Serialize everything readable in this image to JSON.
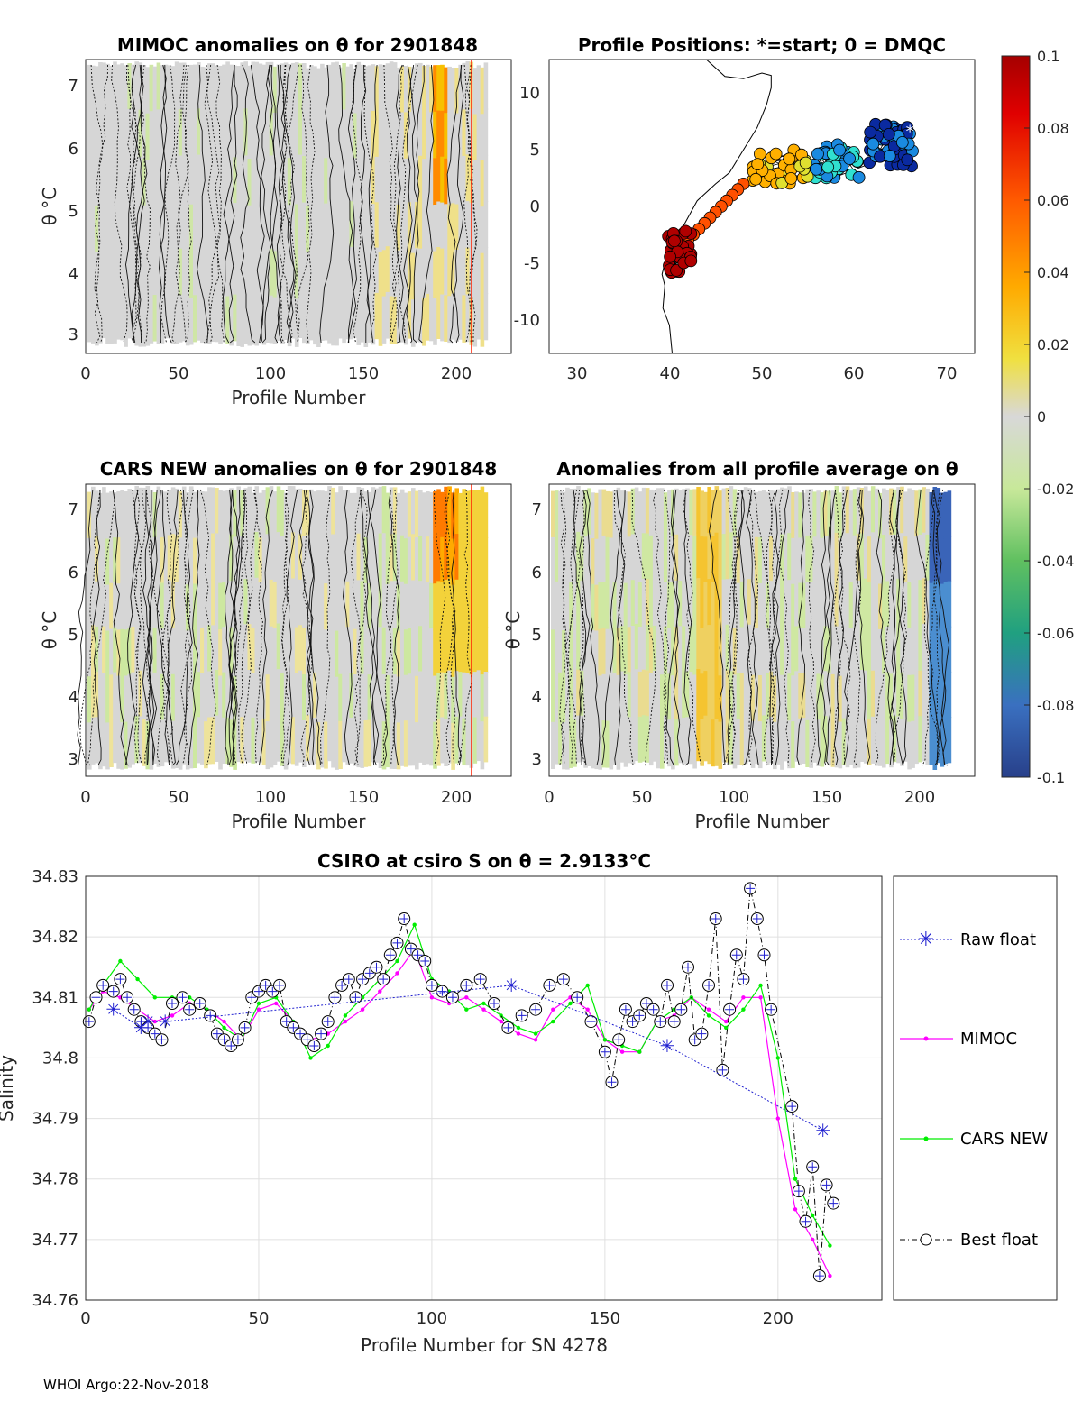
{
  "chart_data": [
    {
      "type": "heatmap",
      "title": "MIMOC anomalies on θ  for 2901848",
      "xlabel": "Profile Number",
      "ylabel": "θ °C",
      "xticks": [
        "0",
        "50",
        "100",
        "150",
        "200"
      ],
      "yticks": [
        "3",
        "4",
        "5",
        "6",
        "7"
      ],
      "xlim": [
        0,
        230
      ],
      "ylim": [
        2.75,
        7.4
      ]
    },
    {
      "type": "scatter",
      "title": "Profile Positions: *=start; 0 = DMQC",
      "xticks": [
        "30",
        "40",
        "50",
        "60",
        "70"
      ],
      "yticks": [
        "10",
        "5",
        "0",
        "-5",
        "-10"
      ],
      "xlim": [
        27,
        73
      ],
      "ylim": [
        -13,
        13
      ]
    },
    {
      "type": "heatmap",
      "title": "CARS NEW anomalies on θ for 2901848",
      "xlabel": "Profile Number",
      "ylabel": "θ °C",
      "xticks": [
        "0",
        "50",
        "100",
        "150",
        "200"
      ],
      "yticks": [
        "3",
        "4",
        "5",
        "6",
        "7"
      ],
      "xlim": [
        0,
        230
      ],
      "ylim": [
        2.75,
        7.4
      ]
    },
    {
      "type": "heatmap",
      "title": "Anomalies from all profile average on θ",
      "xlabel": "Profile Number",
      "ylabel": "θ °C",
      "xticks": [
        "0",
        "50",
        "100",
        "150",
        "200"
      ],
      "yticks": [
        "3",
        "4",
        "5",
        "6",
        "7"
      ],
      "xlim": [
        0,
        230
      ],
      "ylim": [
        2.75,
        7.4
      ]
    },
    {
      "type": "line",
      "title": "CSIRO at csiro S on θ = 2.9133°C",
      "xlabel": "Profile Number for SN 4278",
      "ylabel": "Salinity",
      "xlim": [
        0,
        230
      ],
      "ylim": [
        34.76,
        34.83
      ],
      "xticks": [
        "0",
        "50",
        "100",
        "150",
        "200"
      ],
      "yticks": [
        "34.76",
        "34.77",
        "34.78",
        "34.79",
        "34.8",
        "34.81",
        "34.82",
        "34.83"
      ],
      "legend": [
        "Raw float",
        "MIMOC",
        "CARS NEW",
        "Best float"
      ],
      "legend_position": "outside-right",
      "series": [
        {
          "name": "Best float",
          "x": [
            1,
            3,
            5,
            8,
            10,
            12,
            14,
            16,
            18,
            20,
            22,
            25,
            28,
            30,
            33,
            36,
            38,
            40,
            42,
            44,
            46,
            48,
            50,
            52,
            54,
            56,
            58,
            60,
            62,
            64,
            66,
            68,
            70,
            72,
            74,
            76,
            78,
            80,
            82,
            84,
            86,
            88,
            90,
            92,
            94,
            96,
            98,
            100,
            103,
            106,
            110,
            114,
            118,
            122,
            126,
            130,
            134,
            138,
            142,
            146,
            150,
            152,
            154,
            156,
            158,
            160,
            162,
            164,
            166,
            168,
            170,
            172,
            174,
            176,
            178,
            180,
            182,
            184,
            186,
            188,
            190,
            192,
            194,
            196,
            198,
            204,
            206,
            208,
            210,
            212,
            214,
            216
          ],
          "values": [
            34.806,
            34.81,
            34.812,
            34.811,
            34.813,
            34.81,
            34.808,
            34.806,
            34.805,
            34.804,
            34.803,
            34.809,
            34.81,
            34.808,
            34.809,
            34.807,
            34.804,
            34.803,
            34.802,
            34.803,
            34.805,
            34.81,
            34.811,
            34.812,
            34.811,
            34.812,
            34.806,
            34.805,
            34.804,
            34.803,
            34.802,
            34.804,
            34.806,
            34.81,
            34.812,
            34.813,
            34.81,
            34.813,
            34.814,
            34.815,
            34.813,
            34.817,
            34.819,
            34.823,
            34.818,
            34.817,
            34.816,
            34.812,
            34.811,
            34.81,
            34.812,
            34.813,
            34.809,
            34.805,
            34.807,
            34.808,
            34.812,
            34.813,
            34.81,
            34.806,
            34.801,
            34.796,
            34.803,
            34.808,
            34.806,
            34.807,
            34.809,
            34.808,
            34.806,
            34.812,
            34.806,
            34.808,
            34.815,
            34.803,
            34.804,
            34.812,
            34.823,
            34.798,
            34.808,
            34.817,
            34.813,
            34.828,
            34.823,
            34.817,
            34.808,
            34.792,
            34.778,
            34.773,
            34.782,
            34.764,
            34.779,
            34.776
          ]
        },
        {
          "name": "MIMOC",
          "x": [
            1,
            5,
            10,
            15,
            20,
            25,
            30,
            35,
            40,
            45,
            50,
            55,
            60,
            65,
            70,
            75,
            80,
            85,
            90,
            95,
            100,
            105,
            110,
            115,
            120,
            125,
            130,
            135,
            140,
            145,
            150,
            155,
            160,
            165,
            170,
            175,
            180,
            185,
            190,
            195,
            200,
            205,
            210,
            215
          ],
          "values": [
            34.808,
            34.811,
            34.81,
            34.808,
            34.806,
            34.807,
            34.809,
            34.808,
            34.806,
            34.803,
            34.808,
            34.809,
            34.806,
            34.803,
            34.804,
            34.806,
            34.808,
            34.811,
            34.814,
            34.818,
            34.81,
            34.809,
            34.81,
            34.808,
            34.806,
            34.804,
            34.803,
            34.808,
            34.81,
            34.808,
            34.803,
            34.801,
            34.801,
            34.806,
            34.807,
            34.81,
            34.808,
            34.806,
            34.81,
            34.81,
            34.79,
            34.775,
            34.77,
            34.764
          ]
        },
        {
          "name": "CARS NEW",
          "x": [
            1,
            5,
            10,
            15,
            20,
            25,
            30,
            35,
            40,
            45,
            50,
            55,
            60,
            65,
            70,
            75,
            80,
            85,
            90,
            95,
            100,
            105,
            110,
            115,
            120,
            125,
            130,
            135,
            140,
            145,
            150,
            155,
            160,
            165,
            170,
            175,
            180,
            185,
            190,
            195,
            200,
            205,
            210,
            215
          ],
          "values": [
            34.808,
            34.812,
            34.816,
            34.813,
            34.81,
            34.81,
            34.81,
            34.808,
            34.805,
            34.803,
            34.809,
            34.81,
            34.806,
            34.8,
            34.802,
            34.807,
            34.81,
            34.813,
            34.816,
            34.822,
            34.813,
            34.811,
            34.808,
            34.809,
            34.807,
            34.805,
            34.804,
            34.806,
            34.809,
            34.812,
            34.803,
            34.802,
            34.801,
            34.806,
            34.808,
            34.81,
            34.807,
            34.805,
            34.808,
            34.812,
            34.8,
            34.78,
            34.774,
            34.769
          ]
        },
        {
          "name": "Raw float",
          "x": [
            8,
            16,
            18,
            23,
            123,
            168,
            213
          ],
          "values": [
            34.808,
            34.805,
            34.806,
            34.806,
            34.812,
            34.802,
            34.788
          ]
        }
      ]
    }
  ],
  "colorbar": {
    "ticks": [
      "0.1",
      "0.08",
      "0.06",
      "0.04",
      "0.02",
      "0",
      "-0.02",
      "-0.04",
      "-0.06",
      "-0.08",
      "-0.1"
    ],
    "colors": [
      "#b20000",
      "#ff3300",
      "#ff8800",
      "#f5cc00",
      "#d3d3d3",
      "#c8e890",
      "#55c060",
      "#1a8a8a",
      "#3050b0",
      "#203070"
    ]
  },
  "footer": "WHOI Argo:22-Nov-2018"
}
